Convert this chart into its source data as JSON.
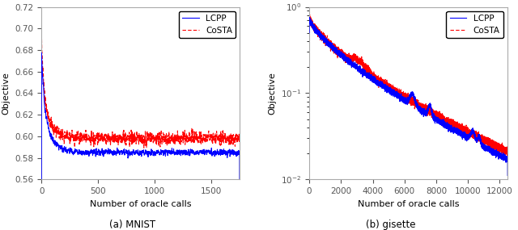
{
  "mnist": {
    "xlim": [
      0,
      1750
    ],
    "ylim": [
      0.56,
      0.72
    ],
    "yticks": [
      0.56,
      0.58,
      0.6,
      0.62,
      0.64,
      0.66,
      0.68,
      0.7,
      0.72
    ],
    "xticks": [
      0,
      500,
      1000,
      1500
    ],
    "xlabel": "Number of oracle calls",
    "ylabel": "Objective",
    "title": "(a) MNIST",
    "lcpp_color": "#0000FF",
    "costa_color": "#FF0000",
    "n_points": 1750
  },
  "gisette": {
    "xlim": [
      0,
      12500
    ],
    "xticks": [
      0,
      2000,
      4000,
      6000,
      8000,
      10000,
      12000
    ],
    "xlabel": "Number of oracle calls",
    "ylabel": "Objective",
    "title": "(b) gisette",
    "lcpp_color": "#0000FF",
    "costa_color": "#FF0000",
    "n_points": 12500
  }
}
